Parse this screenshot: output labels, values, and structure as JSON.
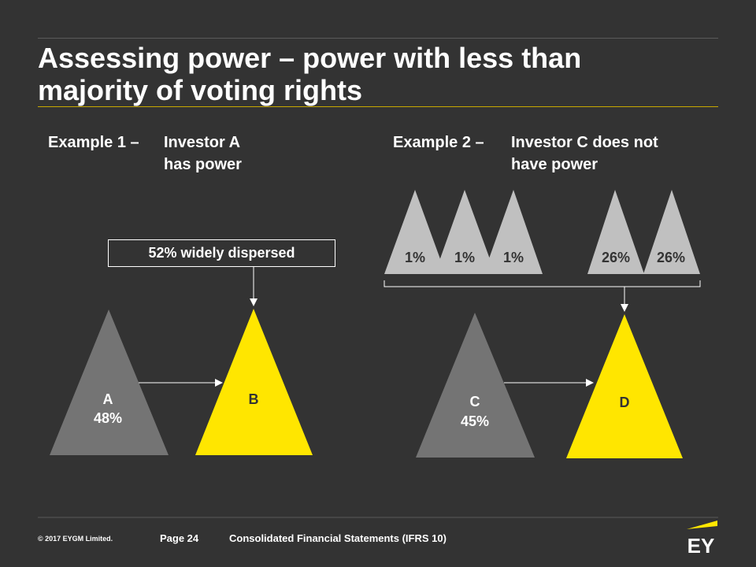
{
  "title_line1": "Assessing power – power with less than",
  "title_line2": "majority of voting rights",
  "example1": {
    "label": "Example 1 –",
    "desc_line1": "Investor A",
    "desc_line2": "has power",
    "callout": "52% widely dispersed",
    "investor_a": {
      "name": "A",
      "pct": "48%"
    },
    "investee_b": {
      "name": "B"
    }
  },
  "example2": {
    "label": "Example 2 –",
    "desc_line1": "Investor C does not",
    "desc_line2": "have power",
    "holders": [
      "1%",
      "1%",
      "1%",
      "26%",
      "26%"
    ],
    "investor_c": {
      "name": "C",
      "pct": "45%"
    },
    "investee_d": {
      "name": "D"
    }
  },
  "footer": {
    "copyright": "© 2017 EYGM Limited.",
    "page": "Page 24",
    "doc_title": "Consolidated Financial Statements (IFRS 10)",
    "logo_text": "EY"
  },
  "colors": {
    "background": "#333333",
    "accent_yellow": "#FFE600",
    "dark_gray": "#747474",
    "light_gray": "#C0C0C0"
  }
}
